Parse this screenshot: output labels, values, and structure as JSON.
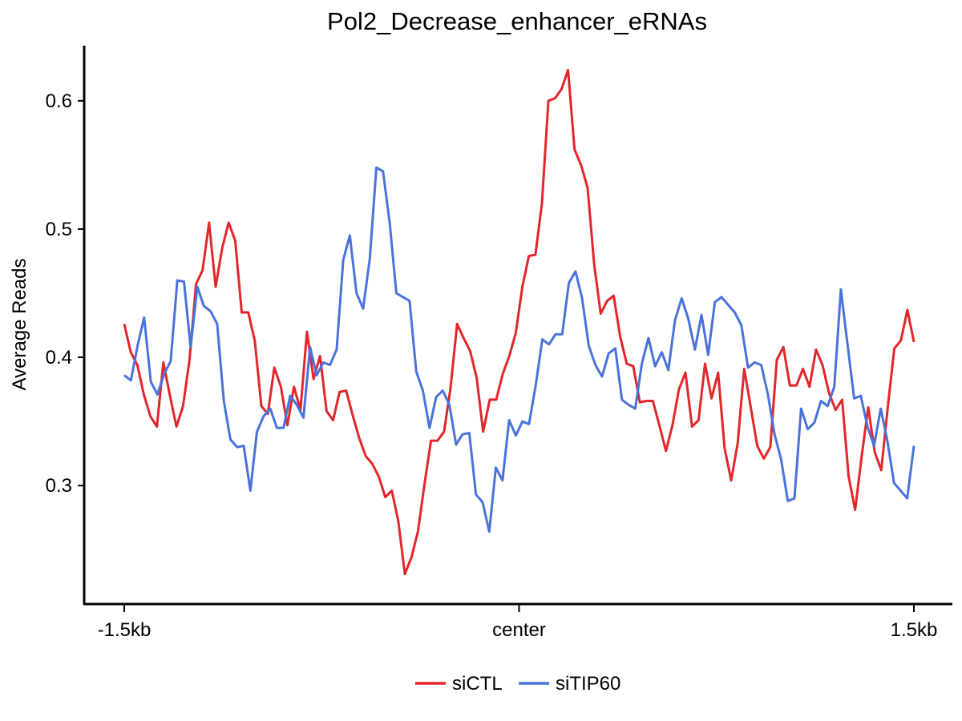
{
  "chart_data": {
    "type": "line",
    "title": "Pol2_Decrease_enhancer_eRNAs",
    "xlabel": "",
    "ylabel": "Average Reads",
    "x_range": [
      0,
      200
    ],
    "ylim": [
      0.207,
      0.643
    ],
    "y_ticks": [
      0.3,
      0.4,
      0.5,
      0.6
    ],
    "y_tick_labels": [
      "0.3",
      "0.4",
      "0.5",
      "0.6"
    ],
    "x_ticks": [
      0,
      100,
      200
    ],
    "x_tick_labels": [
      "-1.5kb",
      "center",
      "1.5kb"
    ],
    "grid": false,
    "legend_position": "bottom",
    "series": [
      {
        "name": "siCTL",
        "color": "#E3262B",
        "values": [
          0.426,
          0.404,
          0.394,
          0.371,
          0.354,
          0.346,
          0.396,
          0.37,
          0.346,
          0.362,
          0.398,
          0.457,
          0.468,
          0.505,
          0.455,
          0.485,
          0.505,
          0.491,
          0.435,
          0.435,
          0.413,
          0.362,
          0.356,
          0.392,
          0.377,
          0.347,
          0.377,
          0.359,
          0.42,
          0.383,
          0.401,
          0.358,
          0.351,
          0.373,
          0.374,
          0.355,
          0.337,
          0.323,
          0.317,
          0.307,
          0.291,
          0.296,
          0.272,
          0.231,
          0.244,
          0.264,
          0.301,
          0.335,
          0.335,
          0.342,
          0.376,
          0.426,
          0.415,
          0.405,
          0.384,
          0.342,
          0.367,
          0.367,
          0.387,
          0.401,
          0.419,
          0.455,
          0.479,
          0.48,
          0.52,
          0.6,
          0.602,
          0.609,
          0.624,
          0.562,
          0.55,
          0.532,
          0.473,
          0.434,
          0.444,
          0.448,
          0.416,
          0.395,
          0.393,
          0.365,
          0.366,
          0.366,
          0.347,
          0.327,
          0.347,
          0.375,
          0.388,
          0.346,
          0.351,
          0.395,
          0.368,
          0.388,
          0.329,
          0.304,
          0.333,
          0.391,
          0.361,
          0.331,
          0.321,
          0.33,
          0.398,
          0.408,
          0.378,
          0.378,
          0.391,
          0.377,
          0.406,
          0.394,
          0.372,
          0.359,
          0.367,
          0.307,
          0.281,
          0.323,
          0.361,
          0.326,
          0.312,
          0.361,
          0.407,
          0.413,
          0.437,
          0.412
        ]
      },
      {
        "name": "siTIP60",
        "color": "#4A72DB",
        "values": [
          0.386,
          0.382,
          0.409,
          0.431,
          0.381,
          0.371,
          0.387,
          0.397,
          0.46,
          0.459,
          0.408,
          0.455,
          0.44,
          0.436,
          0.426,
          0.366,
          0.336,
          0.33,
          0.331,
          0.296,
          0.342,
          0.354,
          0.36,
          0.345,
          0.345,
          0.37,
          0.363,
          0.353,
          0.408,
          0.386,
          0.396,
          0.394,
          0.406,
          0.476,
          0.495,
          0.45,
          0.438,
          0.477,
          0.548,
          0.545,
          0.505,
          0.45,
          0.447,
          0.444,
          0.389,
          0.374,
          0.345,
          0.369,
          0.374,
          0.363,
          0.332,
          0.34,
          0.341,
          0.293,
          0.287,
          0.264,
          0.314,
          0.304,
          0.351,
          0.339,
          0.35,
          0.348,
          0.378,
          0.414,
          0.41,
          0.418,
          0.418,
          0.458,
          0.467,
          0.446,
          0.409,
          0.394,
          0.385,
          0.403,
          0.407,
          0.367,
          0.363,
          0.36,
          0.395,
          0.415,
          0.393,
          0.404,
          0.39,
          0.429,
          0.446,
          0.43,
          0.406,
          0.433,
          0.402,
          0.443,
          0.447,
          0.441,
          0.435,
          0.425,
          0.392,
          0.396,
          0.394,
          0.371,
          0.34,
          0.32,
          0.288,
          0.29,
          0.36,
          0.344,
          0.349,
          0.366,
          0.362,
          0.377,
          0.453,
          0.41,
          0.368,
          0.37,
          0.346,
          0.331,
          0.36,
          0.335,
          0.302,
          0.296,
          0.29,
          0.331
        ]
      }
    ]
  }
}
